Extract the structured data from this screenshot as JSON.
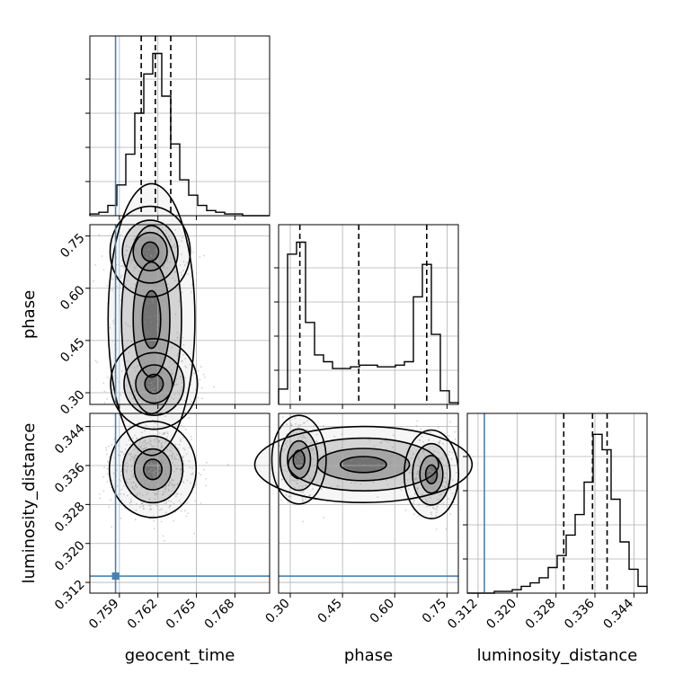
{
  "chart_data": {
    "type": "corner",
    "parameters": [
      "geocent_time",
      "phase",
      "luminosity_distance"
    ],
    "axis_labels": {
      "geocent_time": "geocent_time",
      "phase": "phase",
      "luminosity_distance": "luminosity_distance"
    },
    "ranges": {
      "geocent_time": [
        0.7567,
        0.7707
      ],
      "phase": [
        0.2665,
        0.7825
      ],
      "luminosity_distance": [
        0.3098,
        0.3467
      ]
    },
    "ticks": {
      "geocent_time": [
        0.759,
        0.762,
        0.765,
        0.768
      ],
      "phase": [
        0.3,
        0.45,
        0.6,
        0.75
      ],
      "luminosity_distance": [
        0.312,
        0.32,
        0.328,
        0.336,
        0.344
      ]
    },
    "tick_labels": {
      "geocent_time": [
        "0.759",
        "0.762",
        "0.765",
        "0.768"
      ],
      "phase": [
        "0.30",
        "0.45",
        "0.60",
        "0.75"
      ],
      "luminosity_distance": [
        "0.312",
        "0.320",
        "0.328",
        "0.336",
        "0.344"
      ]
    },
    "injection_values": {
      "geocent_time": 0.7587,
      "luminosity_distance": 0.3133
    },
    "injection_color": "#4682b4",
    "quantiles": {
      "geocent_time": [
        0.7607,
        0.7618,
        0.763
      ],
      "phase": [
        0.3275,
        0.4967,
        0.6917
      ],
      "luminosity_distance": [
        0.3296,
        0.3355,
        0.3385
      ]
    },
    "histograms": {
      "geocent_time": [
        0.01,
        0.02,
        0.06,
        0.18,
        0.36,
        0.6,
        0.83,
        0.95,
        0.7,
        0.42,
        0.21,
        0.12,
        0.06,
        0.03,
        0.02,
        0.01,
        0.01,
        0,
        0,
        0
      ],
      "phase": [
        0.09,
        0.88,
        0.95,
        0.48,
        0.29,
        0.25,
        0.21,
        0.21,
        0.22,
        0.23,
        0.23,
        0.22,
        0.22,
        0.23,
        0.25,
        0.63,
        0.82,
        0.41,
        0.08,
        0.01
      ],
      "luminosity_distance": [
        0,
        0,
        0,
        0.01,
        0.01,
        0.02,
        0.04,
        0.06,
        0.09,
        0.15,
        0.22,
        0.34,
        0.46,
        0.65,
        0.93,
        0.84,
        0.55,
        0.3,
        0.14,
        0.04
      ]
    },
    "density_2d": {
      "phase_vs_geocent_time": {
        "clusters": [
          {
            "x": 0.7614,
            "y": 0.705,
            "sx": 0.0012,
            "sy": 0.05,
            "w": 1.0
          },
          {
            "x": 0.7617,
            "y": 0.325,
            "sx": 0.0013,
            "sy": 0.05,
            "w": 1.15
          },
          {
            "x": 0.7615,
            "y": 0.51,
            "sx": 0.0013,
            "sy": 0.15,
            "w": 0.45
          }
        ]
      },
      "luminosity_distance_vs_geocent_time": {
        "clusters": [
          {
            "x": 0.7616,
            "y": 0.3352,
            "sx": 0.0013,
            "sy": 0.0038,
            "w": 1.0
          }
        ]
      },
      "luminosity_distance_vs_phase": {
        "clusters": [
          {
            "x": 0.325,
            "y": 0.3372,
            "sx": 0.03,
            "sy": 0.0035,
            "w": 1.0
          },
          {
            "x": 0.705,
            "y": 0.3342,
            "sx": 0.03,
            "sy": 0.0035,
            "w": 1.0
          },
          {
            "x": 0.51,
            "y": 0.3362,
            "sx": 0.12,
            "sy": 0.003,
            "w": 0.55
          }
        ]
      }
    },
    "grid": true
  }
}
